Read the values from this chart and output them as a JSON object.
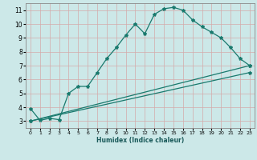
{
  "title": "",
  "xlabel": "Humidex (Indice chaleur)",
  "bg_color": "#cce8e8",
  "grid_color": "#aacccc",
  "line_color": "#1a7a6e",
  "xlim": [
    -0.5,
    23.5
  ],
  "ylim": [
    2.5,
    11.5
  ],
  "xticks": [
    0,
    1,
    2,
    3,
    4,
    5,
    6,
    7,
    8,
    9,
    10,
    11,
    12,
    13,
    14,
    15,
    16,
    17,
    18,
    19,
    20,
    21,
    22,
    23
  ],
  "yticks": [
    3,
    4,
    5,
    6,
    7,
    8,
    9,
    10,
    11
  ],
  "line1_x": [
    0,
    1,
    2,
    3,
    4,
    5,
    6,
    7,
    8,
    9,
    10,
    11,
    12,
    13,
    14,
    15,
    16,
    17,
    18,
    19,
    20,
    21,
    22,
    23
  ],
  "line1_y": [
    3.9,
    3.05,
    3.2,
    3.1,
    5.0,
    5.5,
    5.5,
    6.5,
    7.5,
    8.3,
    9.2,
    10.0,
    9.3,
    10.7,
    11.1,
    11.2,
    11.0,
    10.3,
    9.8,
    9.4,
    9.0,
    8.3,
    7.5,
    7.0
  ],
  "line2_x": [
    0,
    23
  ],
  "line2_y": [
    3.0,
    7.0
  ],
  "line3_x": [
    0,
    23
  ],
  "line3_y": [
    3.0,
    6.5
  ]
}
